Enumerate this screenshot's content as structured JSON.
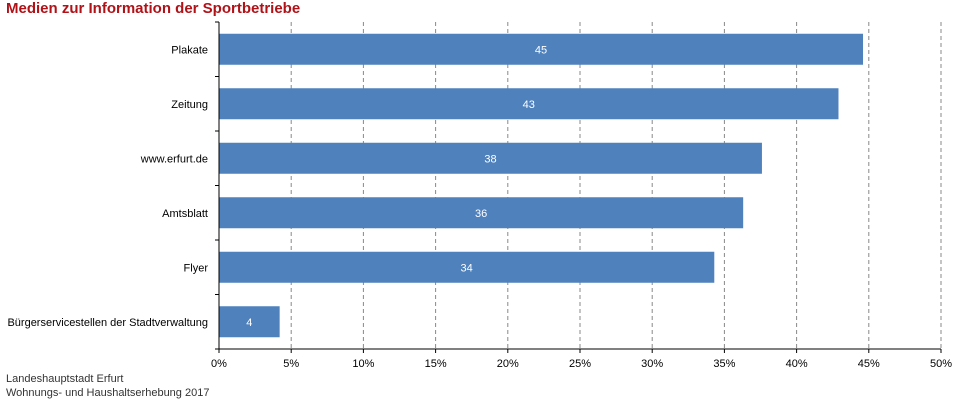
{
  "title": "Medien zur Information der Sportbetriebe",
  "footer": {
    "line1": "Landeshauptstadt Erfurt",
    "line2": "Wohnungs- und Haushaltserhebung 2017"
  },
  "colors": {
    "bar": "#4f81bd",
    "title": "#b01218",
    "grid": "#888888"
  },
  "chart_data": {
    "type": "bar",
    "orientation": "horizontal",
    "title": "Medien zur Information der Sportbetriebe",
    "categories": [
      "Plakate",
      "Zeitung",
      "www.erfurt.de",
      "Amtsblatt",
      "Flyer",
      "Bürgerservicestellen der Stadtverwaltung"
    ],
    "values": [
      44.6,
      42.9,
      37.6,
      36.3,
      34.3,
      4.2
    ],
    "data_labels": [
      "45",
      "43",
      "38",
      "36",
      "34",
      "4"
    ],
    "xlim": [
      0,
      50
    ],
    "xticks": [
      0,
      5,
      10,
      15,
      20,
      25,
      30,
      35,
      40,
      45,
      50
    ],
    "xtick_labels": [
      "0%",
      "5%",
      "10%",
      "15%",
      "20%",
      "25%",
      "30%",
      "35%",
      "40%",
      "45%",
      "50%"
    ],
    "xlabel": "",
    "ylabel": "",
    "grid": "vertical dashed",
    "legend": "none"
  }
}
